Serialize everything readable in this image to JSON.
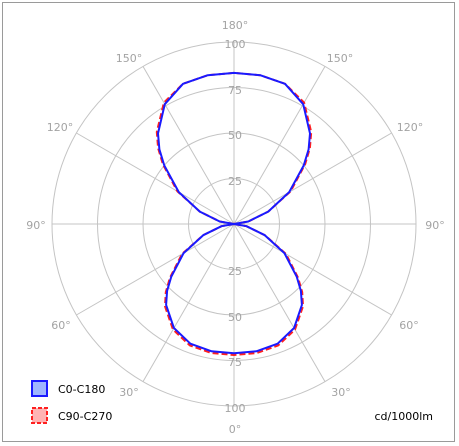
{
  "chart_data": {
    "type": "polar-line",
    "unit": "cd/1000lm",
    "radial_ticks": [
      "25",
      "50",
      "75",
      "100"
    ],
    "radial_max": 100,
    "angle_labels": {
      "top": "180°",
      "bottom": "0°",
      "left_150": "150°",
      "right_150": "150°",
      "left_120": "120°",
      "right_120": "120°",
      "left_90": "90°",
      "right_90": "90°",
      "left_60": "60°",
      "right_60": "60°",
      "left_30": "30°",
      "right_30": "30°"
    },
    "angles": [
      0,
      10,
      20,
      30,
      40,
      45,
      50,
      60,
      70,
      80,
      90
    ],
    "series": [
      {
        "name": "C0-C180",
        "color": "#1a1aff",
        "style": "solid",
        "lower": [
          71,
          71,
          70,
          66,
          58,
          52,
          45,
          32,
          18,
          7,
          0
        ],
        "upper": [
          83,
          83,
          82,
          76,
          65,
          58,
          50,
          35,
          20,
          8,
          0
        ]
      },
      {
        "name": "C90-C270",
        "color": "#ff2020",
        "style": "dashed",
        "lower": [
          72,
          72,
          71,
          67,
          59,
          53,
          46,
          33,
          18,
          7,
          0
        ],
        "upper": [
          83,
          83,
          82,
          77,
          66,
          59,
          51,
          36,
          20,
          8,
          0
        ]
      }
    ]
  }
}
